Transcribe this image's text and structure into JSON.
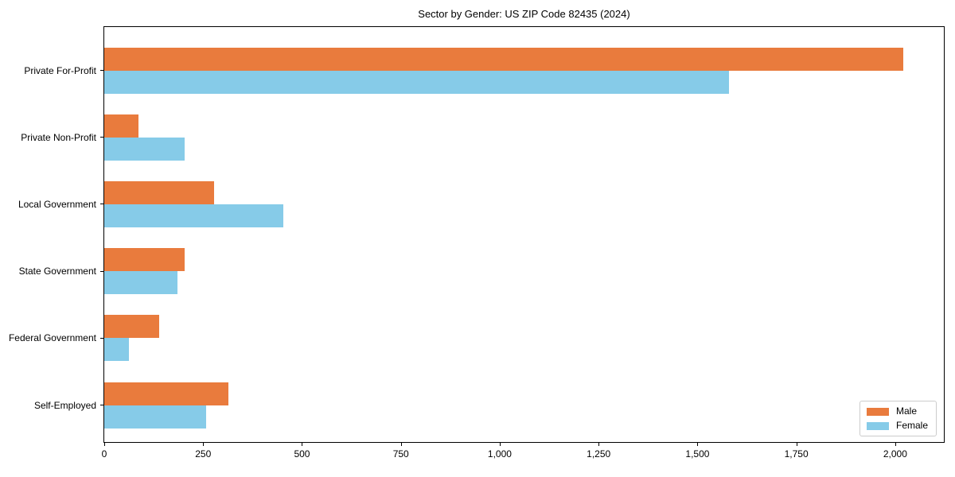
{
  "chart_data": {
    "type": "bar",
    "orientation": "horizontal",
    "title": "Sector by Gender: US ZIP Code 82435 (2024)",
    "categories": [
      "Private For-Profit",
      "Private Non-Profit",
      "Local Government",
      "State Government",
      "Federal Government",
      "Self-Employed"
    ],
    "series": [
      {
        "name": "Male",
        "color": "#e97b3d",
        "values": [
          2020,
          87,
          277,
          203,
          139,
          313
        ]
      },
      {
        "name": "Female",
        "color": "#86cbe8",
        "values": [
          1580,
          203,
          452,
          186,
          63,
          258
        ]
      }
    ],
    "xlabel": "",
    "ylabel": "",
    "xlim": [
      0,
      2123
    ],
    "xticks": {
      "values": [
        0,
        250,
        500,
        750,
        1000,
        1250,
        1500,
        1750,
        2000
      ],
      "labels": [
        "0",
        "250",
        "500",
        "750",
        "1,000",
        "1,250",
        "1,500",
        "1,750",
        "2,000"
      ]
    },
    "grid": false,
    "legend": {
      "position": "lower right"
    },
    "colors": {
      "spine": "#000000",
      "background": "#ffffff"
    }
  }
}
